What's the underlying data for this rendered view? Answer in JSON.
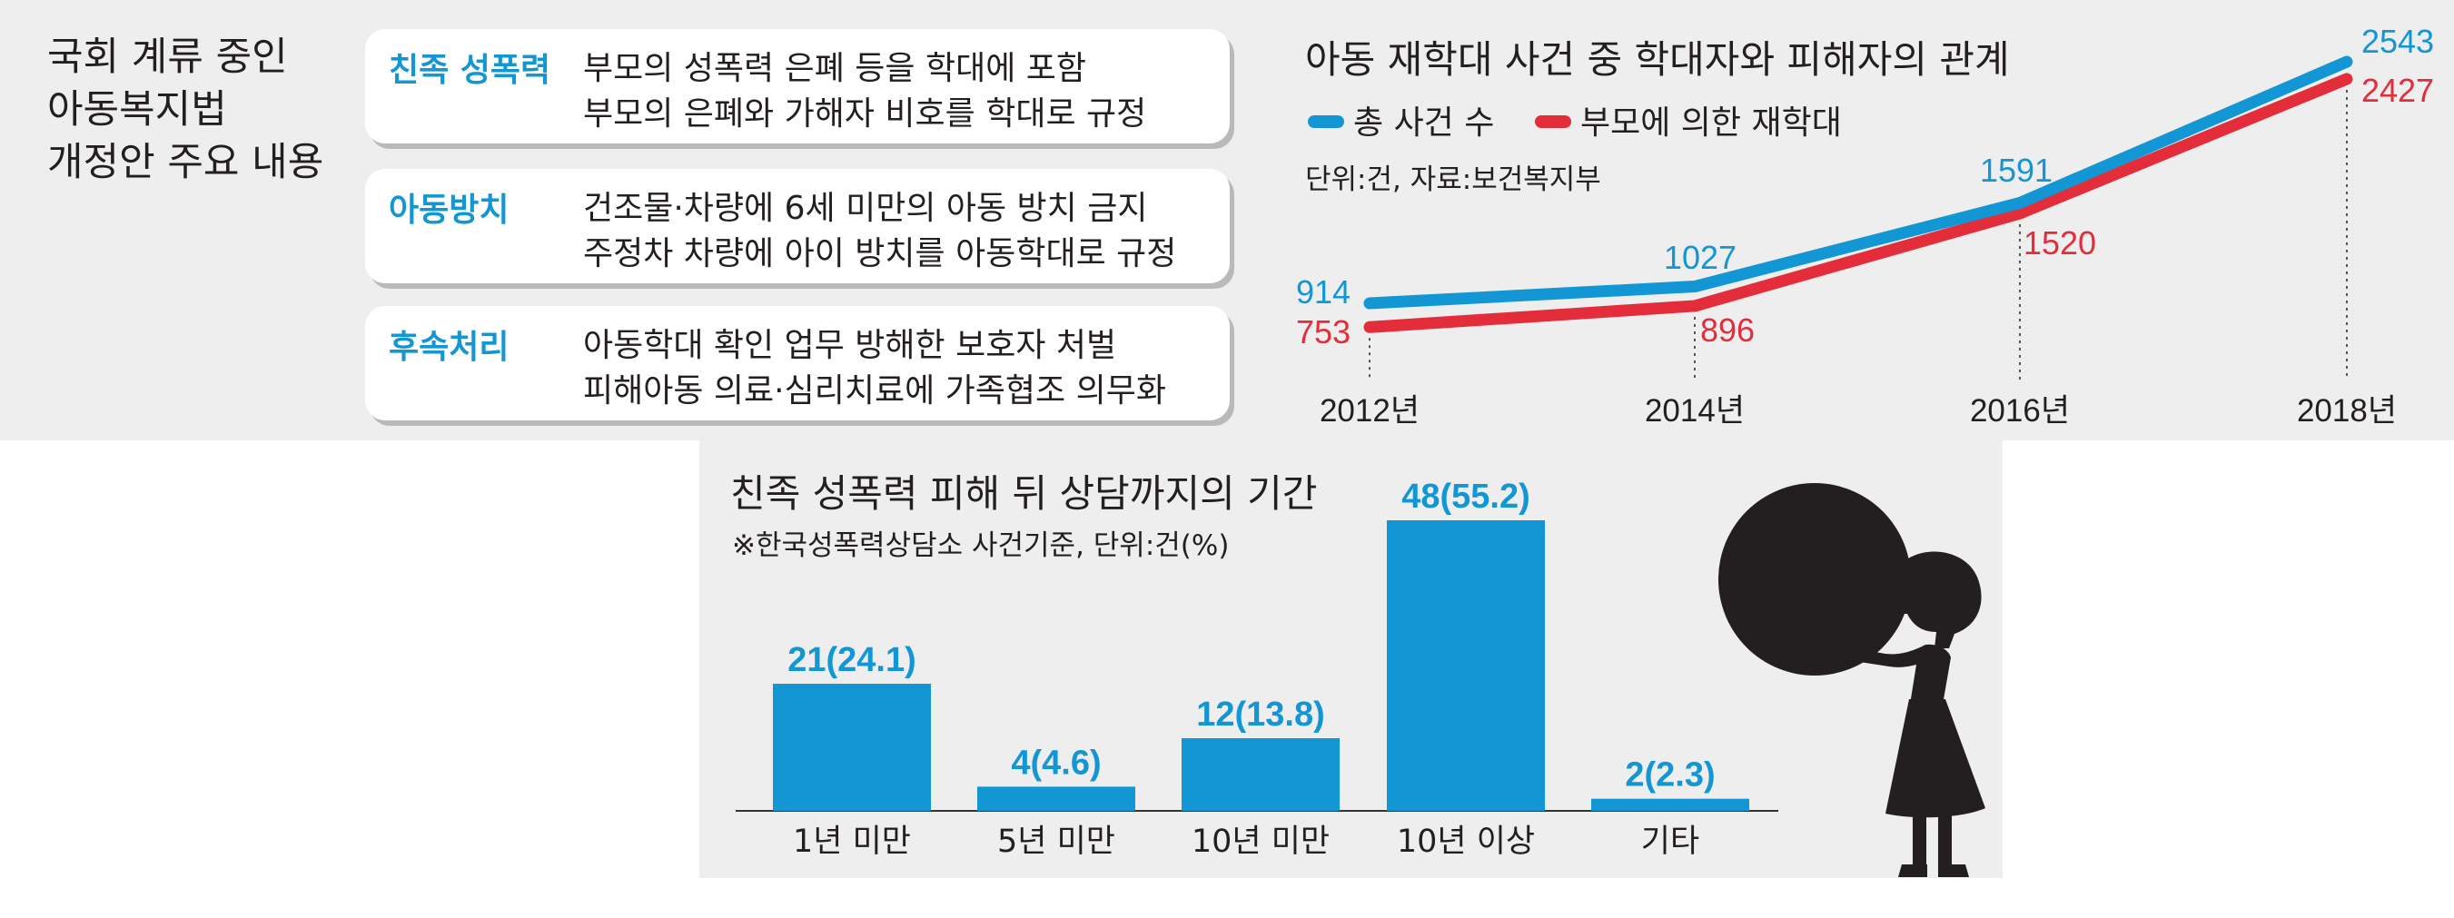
{
  "law_summary": {
    "title": "국회 계류 중인\n아동복지법\n개정안 주요 내용",
    "items": [
      {
        "category": "친족 성폭력",
        "lines": [
          "부모의 성폭력 은폐 등을 학대에 포함",
          "부모의 은폐와 가해자 비호를 학대로 규정"
        ]
      },
      {
        "category": "아동방치",
        "lines": [
          "건조물·차량에 6세 미만의 아동 방치 금지",
          "주정차 차량에 아이 방치를 아동학대로 규정"
        ]
      },
      {
        "category": "후속처리",
        "lines": [
          "아동학대 확인 업무 방해한 보호자 처벌",
          "피해아동 의료·심리치료에 가족협조 의무화"
        ]
      }
    ]
  },
  "colors": {
    "blue": "#1296d4",
    "red": "#e42d3b",
    "text": "#231f20",
    "panel": "#eeeeee"
  },
  "chart_data": [
    {
      "type": "line",
      "title": "아동 재학대 사건 중 학대자와 피해자의 관계",
      "note": "단위:건, 자료:보건복지부",
      "x": [
        "2012년",
        "2014년",
        "2016년",
        "2018년"
      ],
      "series": [
        {
          "name": "총 사건 수",
          "values": [
            914,
            1027,
            1591,
            2543
          ],
          "color": "#1296d4"
        },
        {
          "name": "부모에 의한 재학대",
          "values": [
            753,
            896,
            1520,
            2427
          ],
          "color": "#e42d3b"
        }
      ],
      "value_labels": {
        "총 사건 수": [
          "914",
          "1027",
          "1591",
          "2543"
        ],
        "부모에 의한 재학대": [
          "753",
          "896",
          "1520",
          "2427"
        ]
      },
      "grid": false,
      "legend": "top-left"
    },
    {
      "type": "bar",
      "title": "친족 성폭력 피해 뒤 상담까지의 기간",
      "note": "※한국성폭력상담소 사건기준, 단위:건(%)",
      "categories": [
        "1년 미만",
        "5년 미만",
        "10년 미만",
        "10년 이상",
        "기타"
      ],
      "values": [
        21,
        4,
        12,
        48,
        2
      ],
      "percent": [
        24.1,
        4.6,
        13.8,
        55.2,
        2.3
      ],
      "labels": [
        "21(24.1)",
        "4(4.6)",
        "12(13.8)",
        "48(55.2)",
        "2(2.3)"
      ],
      "color": "#1296d4"
    }
  ]
}
